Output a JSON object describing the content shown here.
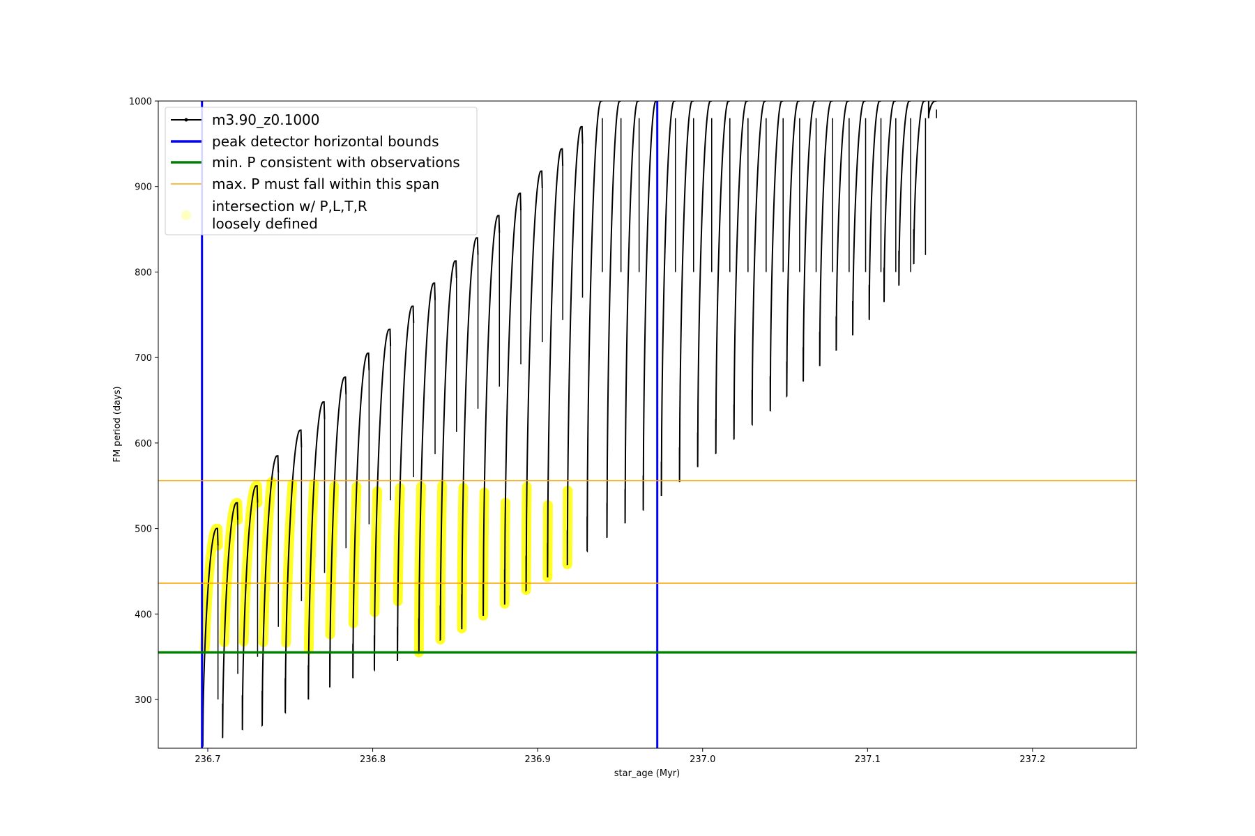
{
  "chart_data": {
    "type": "line",
    "xlabel": "star_age (Myr)",
    "ylabel": "FM period (days)",
    "xlim": [
      236.67,
      237.263
    ],
    "ylim": [
      243,
      1000
    ],
    "xticks": [
      236.7,
      236.8,
      236.9,
      237.0,
      237.1,
      237.2
    ],
    "xtick_labels": [
      "236.7",
      "236.8",
      "236.9",
      "237.0",
      "237.1",
      "237.2"
    ],
    "yticks": [
      300,
      400,
      500,
      600,
      700,
      800,
      900,
      1000
    ],
    "ytick_labels": [
      "300",
      "400",
      "500",
      "600",
      "700",
      "800",
      "900",
      "1000"
    ],
    "grid": false,
    "legend_position": "top-left",
    "series": [
      {
        "name": "m3.90_z0.1000",
        "kind": "pulses",
        "color": "#000000",
        "pulses": [
          {
            "x": 236.697,
            "min": 245,
            "peak": 500
          },
          {
            "x": 236.709,
            "min": 255,
            "peak": 530
          },
          {
            "x": 236.721,
            "min": 265,
            "peak": 550
          },
          {
            "x": 236.733,
            "min": 270,
            "peak": 585
          },
          {
            "x": 236.747,
            "min": 285,
            "peak": 615
          },
          {
            "x": 236.761,
            "min": 300,
            "peak": 648
          },
          {
            "x": 236.774,
            "min": 315,
            "peak": 677
          },
          {
            "x": 236.788,
            "min": 325,
            "peak": 705
          },
          {
            "x": 236.801,
            "min": 335,
            "peak": 733
          },
          {
            "x": 236.815,
            "min": 345,
            "peak": 760
          },
          {
            "x": 236.828,
            "min": 355,
            "peak": 787
          },
          {
            "x": 236.841,
            "min": 370,
            "peak": 813
          },
          {
            "x": 236.854,
            "min": 383,
            "peak": 840
          },
          {
            "x": 236.867,
            "min": 398,
            "peak": 866
          },
          {
            "x": 236.88,
            "min": 412,
            "peak": 892
          },
          {
            "x": 236.893,
            "min": 428,
            "peak": 918
          },
          {
            "x": 236.906,
            "min": 443,
            "peak": 944
          },
          {
            "x": 236.918,
            "min": 458,
            "peak": 970
          },
          {
            "x": 236.93,
            "min": 474,
            "peak": 1000
          },
          {
            "x": 236.942,
            "min": 490,
            "peak": 1000
          },
          {
            "x": 236.953,
            "min": 506,
            "peak": 1000
          },
          {
            "x": 236.964,
            "min": 522,
            "peak": 1000
          },
          {
            "x": 236.975,
            "min": 538,
            "peak": 1000
          },
          {
            "x": 236.986,
            "min": 555,
            "peak": 1000
          },
          {
            "x": 236.997,
            "min": 572,
            "peak": 1000
          },
          {
            "x": 237.008,
            "min": 588,
            "peak": 1000
          },
          {
            "x": 237.019,
            "min": 605,
            "peak": 1000
          },
          {
            "x": 237.03,
            "min": 622,
            "peak": 1000
          },
          {
            "x": 237.041,
            "min": 638,
            "peak": 1000
          },
          {
            "x": 237.051,
            "min": 655,
            "peak": 1000
          },
          {
            "x": 237.061,
            "min": 672,
            "peak": 1000
          },
          {
            "x": 237.071,
            "min": 690,
            "peak": 1000
          },
          {
            "x": 237.081,
            "min": 708,
            "peak": 1000
          },
          {
            "x": 237.091,
            "min": 726,
            "peak": 1000
          },
          {
            "x": 237.101,
            "min": 745,
            "peak": 1000
          },
          {
            "x": 237.11,
            "min": 765,
            "peak": 1000
          },
          {
            "x": 237.119,
            "min": 785,
            "peak": 1000
          },
          {
            "x": 237.128,
            "min": 810,
            "peak": 1000
          },
          {
            "x": 237.137,
            "min": 980,
            "peak": 1000
          }
        ]
      },
      {
        "name": "peak detector horizontal bounds",
        "kind": "vline",
        "color": "#0000ff",
        "x": [
          236.6965,
          236.9725
        ]
      },
      {
        "name": "min. P consistent with observations",
        "kind": "hline",
        "color": "#008000",
        "y": [
          355
        ]
      },
      {
        "name": "max. P must fall within this span",
        "kind": "hline",
        "color": "#ffa500",
        "y": [
          436,
          556
        ]
      },
      {
        "name": "intersection w/ P,L,T,R\nloosely defined",
        "kind": "highlight",
        "color": "#ffff00",
        "y_range": [
          355,
          556
        ]
      }
    ]
  }
}
